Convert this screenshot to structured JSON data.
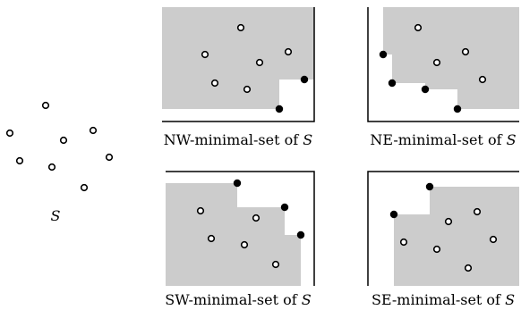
{
  "set_label": "S",
  "panels": {
    "nw": {
      "caption": "NW-minimal-set of",
      "caption_set": "S"
    },
    "ne": {
      "caption": "NE-minimal-set of",
      "caption_set": "S"
    },
    "sw": {
      "caption": "SW-minimal-set of",
      "caption_set": "S"
    },
    "se": {
      "caption": "SE-minimal-set of",
      "caption_set": "S"
    }
  },
  "colors": {
    "region": "#cccccc",
    "point_stroke": "#000000",
    "point_fill_open": "#ffffff",
    "point_fill_solid": "#000000"
  },
  "point_count": 8
}
